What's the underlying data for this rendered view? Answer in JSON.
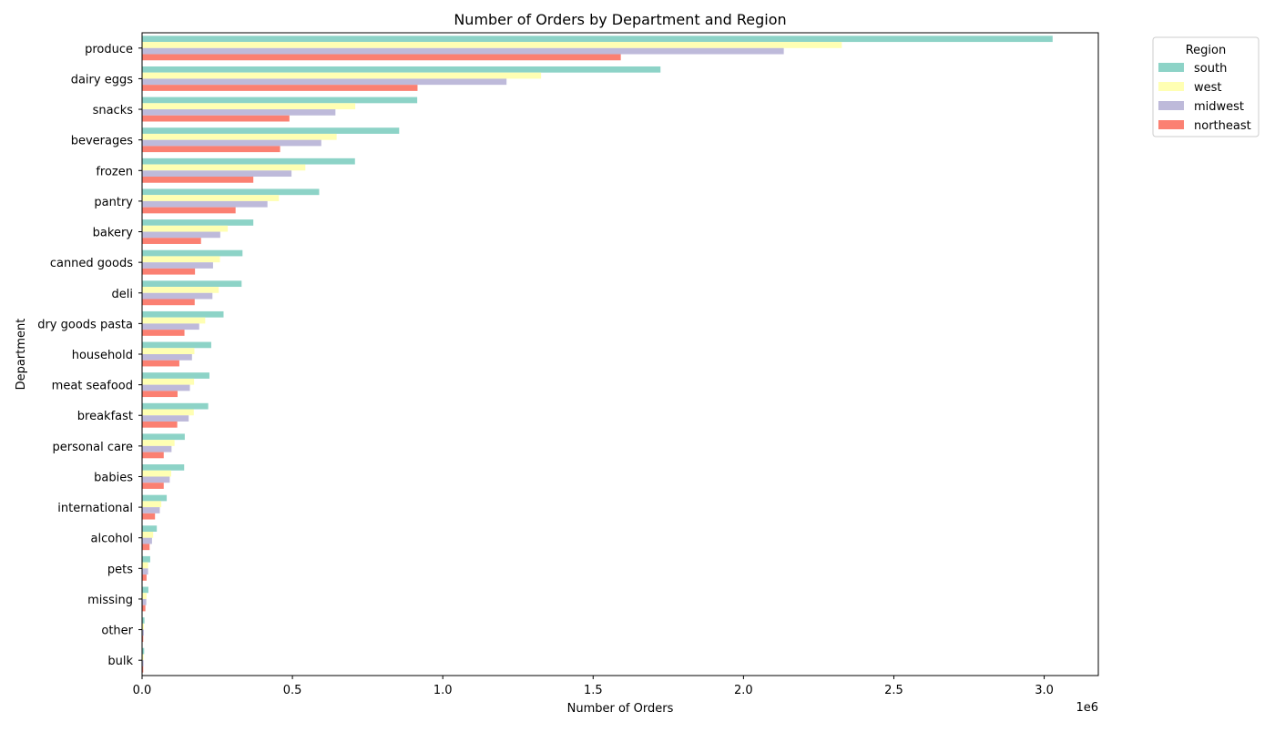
{
  "chart_data": {
    "type": "bar",
    "orientation": "horizontal",
    "title": "Number of Orders by Department and Region",
    "xlabel": "Number of Orders",
    "ylabel": "Department",
    "x_scale_label": "1e6",
    "xlim": [
      0,
      3.18
    ],
    "x_ticks": [
      0,
      0.5,
      1.0,
      1.5,
      2.0,
      2.5,
      3.0
    ],
    "x_tick_labels": [
      "0.0",
      "0.5",
      "1.0",
      "1.5",
      "2.0",
      "2.5",
      "3.0"
    ],
    "grid": false,
    "legend": {
      "title": "Region",
      "placement": "outside-top-right"
    },
    "categories": [
      "produce",
      "dairy eggs",
      "snacks",
      "beverages",
      "frozen",
      "pantry",
      "bakery",
      "canned goods",
      "deli",
      "dry goods pasta",
      "household",
      "meat seafood",
      "breakfast",
      "personal care",
      "babies",
      "international",
      "alcohol",
      "pets",
      "missing",
      "other",
      "bulk"
    ],
    "series": [
      {
        "name": "south",
        "color": "#8dd3c7",
        "values": [
          3.028,
          1.724,
          0.915,
          0.855,
          0.708,
          0.589,
          0.37,
          0.334,
          0.331,
          0.271,
          0.23,
          0.224,
          0.22,
          0.142,
          0.14,
          0.082,
          0.049,
          0.027,
          0.021,
          0.008,
          0.007
        ]
      },
      {
        "name": "west",
        "color": "#ffffb3",
        "values": [
          2.327,
          1.327,
          0.709,
          0.647,
          0.543,
          0.455,
          0.285,
          0.259,
          0.255,
          0.21,
          0.174,
          0.173,
          0.172,
          0.108,
          0.097,
          0.064,
          0.037,
          0.02,
          0.015,
          0.006,
          0.005
        ]
      },
      {
        "name": "midwest",
        "color": "#bebada",
        "values": [
          2.134,
          1.212,
          0.643,
          0.596,
          0.497,
          0.417,
          0.26,
          0.236,
          0.234,
          0.19,
          0.166,
          0.159,
          0.155,
          0.098,
          0.092,
          0.059,
          0.033,
          0.02,
          0.014,
          0.006,
          0.005
        ]
      },
      {
        "name": "northeast",
        "color": "#fb8072",
        "values": [
          1.592,
          0.916,
          0.49,
          0.459,
          0.37,
          0.311,
          0.196,
          0.176,
          0.175,
          0.141,
          0.124,
          0.118,
          0.117,
          0.072,
          0.072,
          0.043,
          0.025,
          0.015,
          0.011,
          0.004,
          0.004
        ]
      }
    ]
  }
}
